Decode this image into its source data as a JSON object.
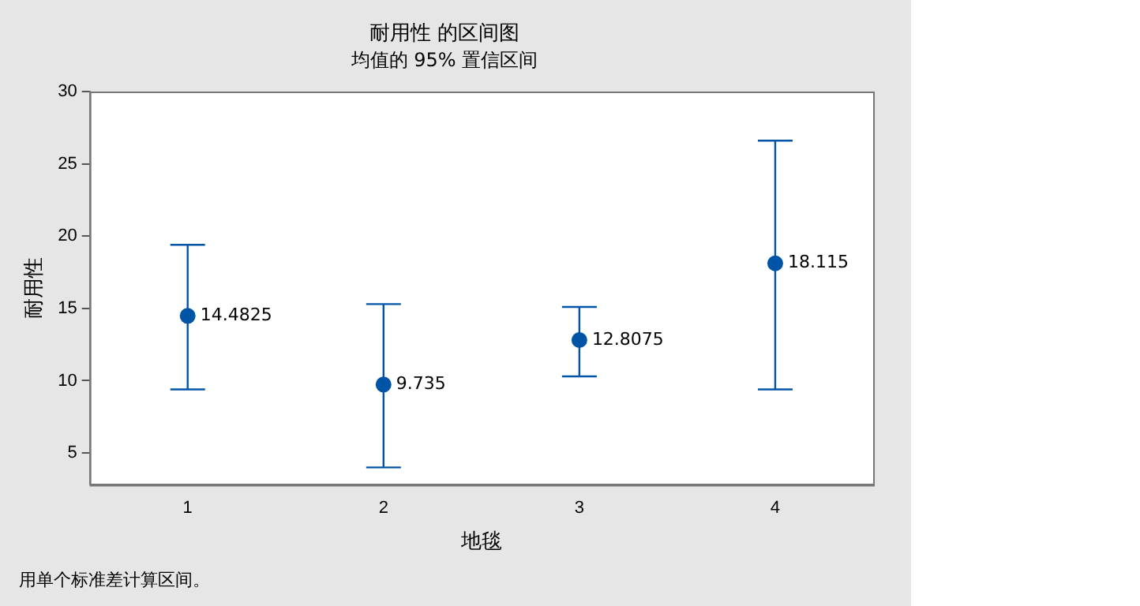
{
  "chart_data": {
    "type": "scatter",
    "title": "耐用性 的区间图",
    "subtitle": "均值的 95% 置信区间",
    "xlabel": "地毯",
    "ylabel": "耐用性",
    "categories": [
      "1",
      "2",
      "3",
      "4"
    ],
    "values": [
      14.4825,
      9.735,
      12.8075,
      18.115
    ],
    "errors": [
      [
        9.4,
        19.4
      ],
      [
        4.0,
        15.3
      ],
      [
        10.3,
        15.1
      ],
      [
        9.4,
        26.6
      ]
    ],
    "color": "#0054a6",
    "marker": "circle",
    "data_labels": true,
    "ylim": [
      2.8,
      30
    ],
    "yticks": [
      5,
      10,
      15,
      20,
      25,
      30
    ],
    "grid": false,
    "annotations": [
      "用单个标准差计算区间。"
    ]
  }
}
